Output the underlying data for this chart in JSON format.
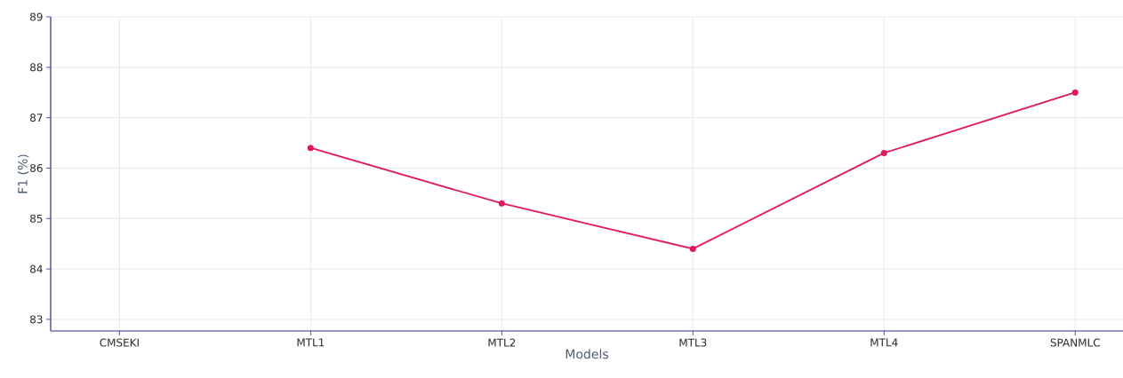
{
  "chart_data": {
    "type": "line",
    "xlabel": "Models",
    "ylabel": "F1 (%)",
    "categories": [
      "CMSEKI",
      "MTL1",
      "MTL2",
      "MTL3",
      "MTL4",
      "SPANMLC"
    ],
    "series": [
      {
        "color": "#e0195a",
        "values": [
          null,
          86.4,
          85.3,
          84.4,
          86.3,
          87.5
        ]
      }
    ],
    "ylim": [
      82.77,
      89
    ],
    "yticks": [
      83,
      84,
      85,
      86,
      87,
      88,
      89
    ],
    "grid": true,
    "marker": "circle",
    "line_style": "solid"
  }
}
